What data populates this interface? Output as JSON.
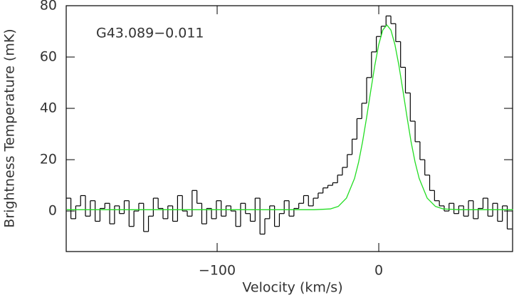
{
  "chart_data": {
    "type": "line",
    "annotation": "G43.089−0.011",
    "x_label": "Velocity (km/s)",
    "y_label": "Brightness Temperature (mK)",
    "xlim": [
      -193.4,
      82.8
    ],
    "ylim": [
      -15.8,
      80
    ],
    "xticks": [
      {
        "value": -100,
        "label": "−100"
      },
      0
    ],
    "yticks": [
      0,
      20,
      40,
      60,
      80
    ],
    "series": [
      {
        "color": "#000000",
        "step": true,
        "x": [
          -192,
          -189,
          -186,
          -183,
          -180,
          -177,
          -174,
          -171,
          -168,
          -165,
          -162,
          -159,
          -156,
          -153,
          -150,
          -147,
          -144,
          -141,
          -138,
          -135,
          -132,
          -129,
          -126,
          -123,
          -120,
          -117,
          -114,
          -111,
          -108,
          -105,
          -102,
          -99,
          -96,
          -93,
          -90,
          -87,
          -84,
          -81,
          -78,
          -75,
          -72,
          -69,
          -66,
          -63,
          -60,
          -57,
          -54,
          -51,
          -48,
          -45,
          -42,
          -39,
          -36,
          -33,
          -30,
          -27,
          -24,
          -21,
          -18,
          -15,
          -12,
          -9,
          -6,
          -3,
          0,
          3,
          6,
          9,
          12,
          15,
          18,
          21,
          24,
          27,
          30,
          33,
          36,
          39,
          42,
          45,
          48,
          51,
          54,
          57,
          60,
          63,
          66,
          69,
          72,
          75,
          78,
          81
        ],
        "values": [
          5,
          -3,
          2,
          6,
          -2,
          4,
          -4,
          1,
          3,
          -5,
          2,
          -1,
          4,
          -6,
          0,
          3,
          -8,
          -2,
          5,
          1,
          -3,
          2,
          -4,
          6,
          0,
          -2,
          8,
          3,
          -5,
          1,
          -3,
          4,
          -2,
          2,
          0,
          -6,
          3,
          -1,
          -4,
          5,
          -9,
          -3,
          2,
          -6,
          -1,
          4,
          -2,
          1,
          3,
          6,
          2,
          5,
          7,
          9,
          10,
          11,
          14,
          17,
          22,
          28,
          36,
          42,
          52,
          62,
          68,
          72,
          76,
          73,
          66,
          56,
          46,
          35,
          27,
          20,
          14,
          8,
          4,
          2,
          0,
          3,
          -1,
          2,
          -2,
          4,
          -3,
          1,
          5,
          -2,
          3,
          -4,
          2,
          -7
        ]
      },
      {
        "color": "#22dd22",
        "x": [
          -193,
          -100,
          -60,
          -40,
          -30,
          -25,
          -20,
          -15,
          -12.5,
          -10,
          -7.5,
          -5,
          -2.5,
          0,
          2.5,
          5,
          7.5,
          10,
          12.5,
          15,
          17.5,
          20,
          22.5,
          25,
          30,
          35,
          40,
          50,
          70,
          83
        ],
        "values": [
          0.5,
          0.5,
          0.5,
          0.5,
          0.8,
          1.8,
          5.0,
          12.7,
          19.0,
          27.0,
          36.5,
          46.7,
          56.6,
          64.9,
          70.5,
          72.5,
          70.5,
          64.9,
          56.6,
          46.7,
          36.5,
          27.0,
          19.0,
          12.7,
          5.0,
          1.8,
          0.8,
          0.5,
          0.5,
          0.5
        ]
      }
    ]
  }
}
